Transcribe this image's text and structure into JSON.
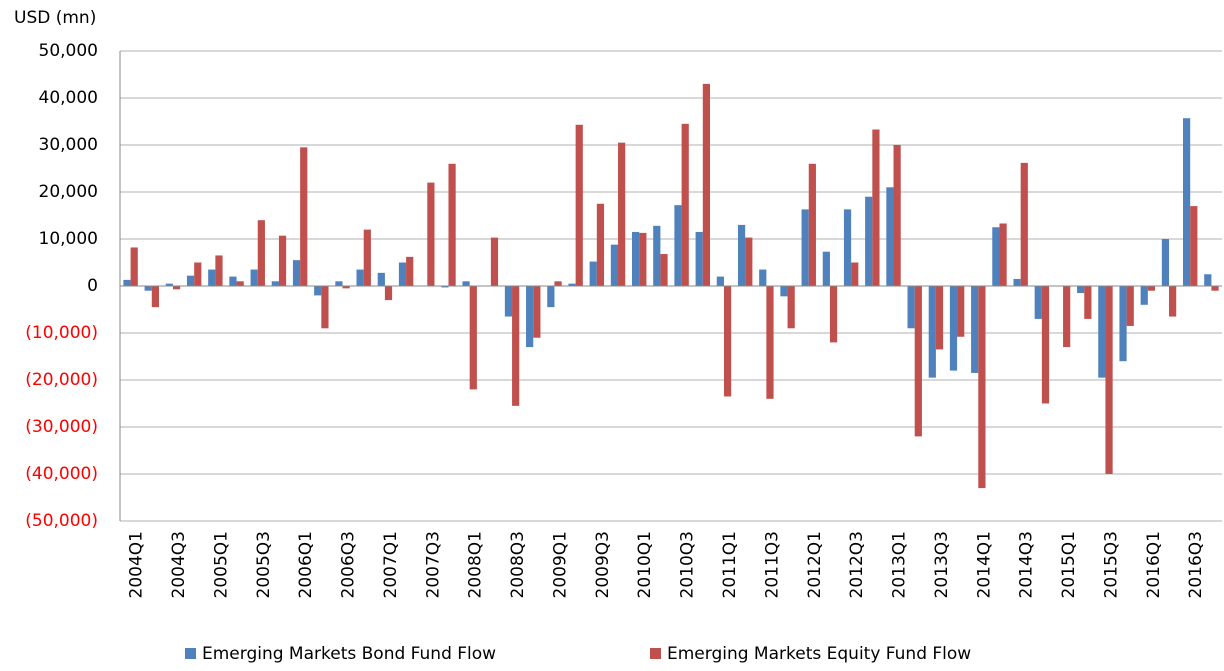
{
  "chart_data": {
    "type": "bar",
    "y_axis_label": "USD (mn)",
    "categories": [
      "2004Q1",
      null,
      "2004Q3",
      null,
      "2005Q1",
      null,
      "2005Q3",
      null,
      "2006Q1",
      null,
      "2006Q3",
      null,
      "2007Q1",
      null,
      "2007Q3",
      null,
      "2008Q1",
      null,
      "2008Q3",
      null,
      "2009Q1",
      null,
      "2009Q3",
      null,
      "2010Q1",
      null,
      "2010Q3",
      null,
      "2011Q1",
      null,
      "2011Q3",
      null,
      "2012Q1",
      null,
      "2012Q3",
      null,
      "2013Q1",
      null,
      "2013Q3",
      null,
      "2014Q1",
      null,
      "2014Q3",
      null,
      "2015Q1",
      null,
      "2015Q3",
      null,
      "2016Q1",
      null,
      "2016Q3",
      null
    ],
    "series": [
      {
        "name": "Emerging Markets Bond Fund Flow",
        "color": "#4f81bd",
        "values": [
          1300,
          -1000,
          500,
          2200,
          3500,
          2000,
          3500,
          1000,
          5500,
          -2000,
          1000,
          3500,
          2800,
          5000,
          0,
          -300,
          1000,
          0,
          -6500,
          -13000,
          -4500,
          500,
          5200,
          8800,
          11500,
          12800,
          17200,
          11500,
          2000,
          13000,
          3500,
          -2200,
          16300,
          7300,
          16300,
          19000,
          21000,
          -9000,
          -19500,
          -18000,
          -18500,
          12500,
          1500,
          -7000,
          0,
          -1500,
          -19500,
          -16000,
          -4000,
          10000,
          35700,
          2500
        ]
      },
      {
        "name": "Emerging Markets Equity Fund Flow",
        "color": "#c0504d",
        "values": [
          8200,
          -4500,
          -700,
          5000,
          6500,
          1000,
          14000,
          10700,
          29500,
          -9000,
          -500,
          12000,
          -3000,
          6200,
          22000,
          26000,
          -22000,
          10300,
          -25500,
          -11000,
          1000,
          34300,
          17500,
          30500,
          11300,
          6800,
          34500,
          43000,
          -23500,
          10300,
          -24000,
          -9000,
          26000,
          -12000,
          5000,
          33300,
          30000,
          -32000,
          -13500,
          -10800,
          -43000,
          13300,
          26200,
          -25000,
          -13000,
          -7000,
          -40000,
          -8500,
          -1000,
          -6500,
          17000,
          -1000
        ]
      }
    ],
    "ylim": [
      -50000,
      50000
    ],
    "yticks": [
      {
        "value": -50000,
        "label": "(50,000)"
      },
      {
        "value": -40000,
        "label": "(40,000)"
      },
      {
        "value": -30000,
        "label": "(30,000)"
      },
      {
        "value": -20000,
        "label": "(20,000)"
      },
      {
        "value": -10000,
        "label": "(10,000)"
      },
      0,
      {
        "value": 10000,
        "label": "10,000"
      },
      {
        "value": 20000,
        "label": "20,000"
      },
      {
        "value": 30000,
        "label": "30,000"
      },
      {
        "value": 40000,
        "label": "40,000"
      },
      {
        "value": 50000,
        "label": "50,000"
      }
    ],
    "negative_tick_color": "#ff0000",
    "grid": true,
    "legend": "bottom"
  }
}
